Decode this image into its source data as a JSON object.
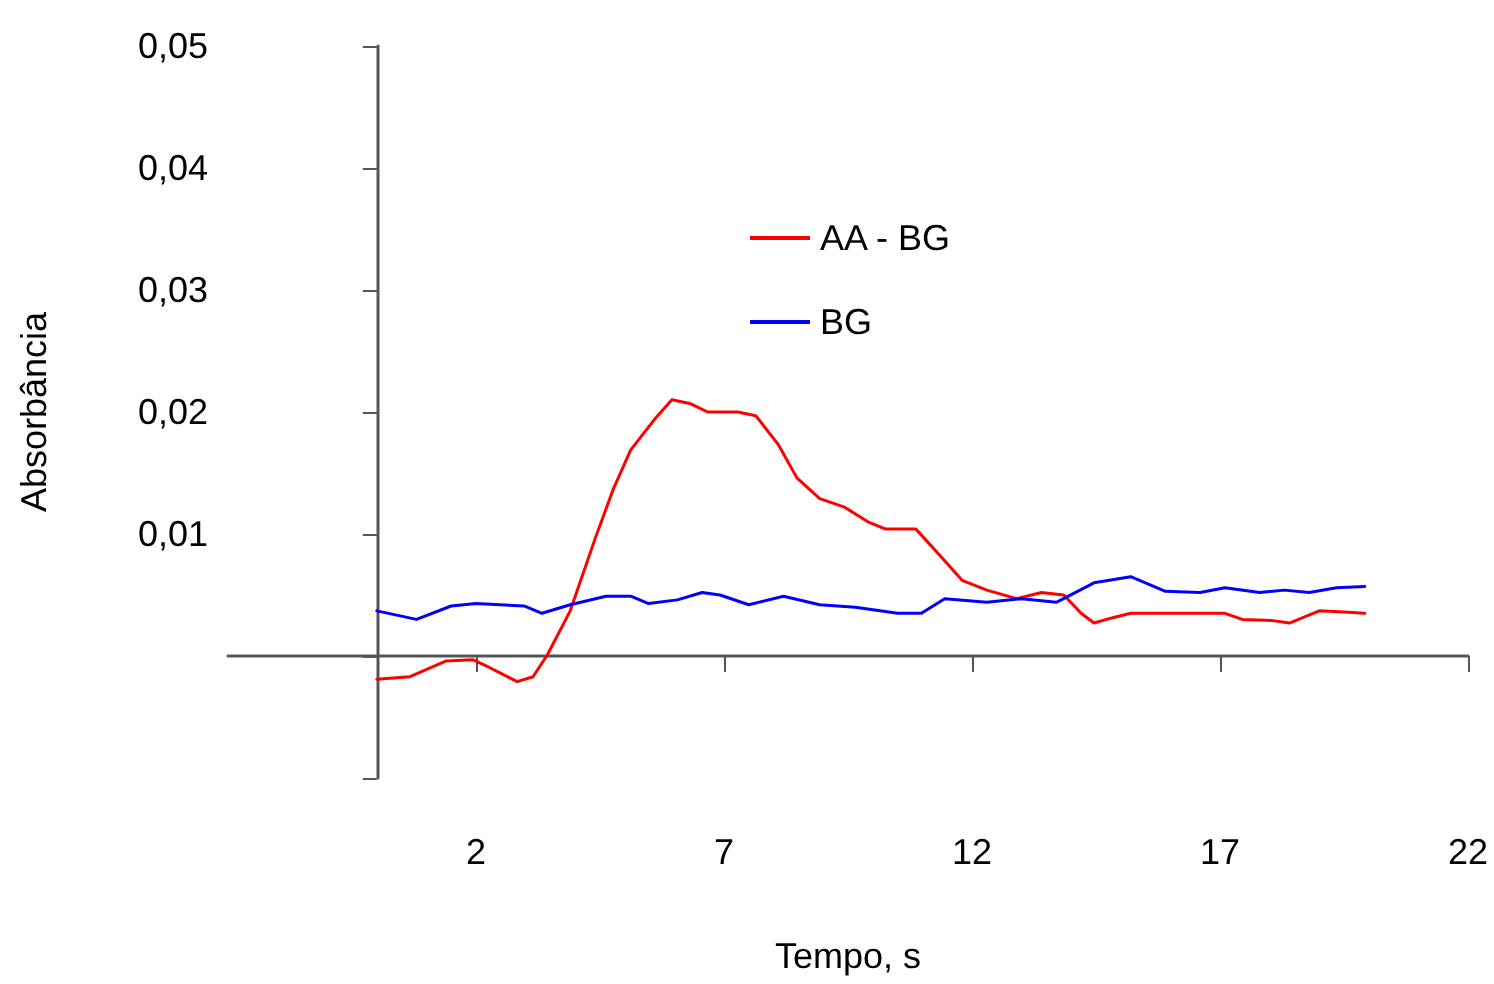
{
  "chart_data": {
    "type": "line",
    "xlabel": "Tempo, s",
    "ylabel": "Absorbância",
    "xlim": [
      -3,
      22
    ],
    "xticks": [
      2,
      7,
      12,
      17,
      22
    ],
    "ylim": [
      -0.01,
      0.05
    ],
    "yticks": [
      {
        "value": -0.01,
        "label": null
      },
      {
        "value": 0,
        "label": null
      },
      {
        "value": 0.01,
        "label": "0,01"
      },
      {
        "value": 0.02,
        "label": "0,02"
      },
      {
        "value": 0.03,
        "label": "0,03"
      },
      {
        "value": 0.04,
        "label": "0,04"
      },
      {
        "value": 0.05,
        "label": "0,05"
      }
    ],
    "legend": "top right",
    "marker": "none",
    "line_style": "solid",
    "series": [
      {
        "name": "AA - BG",
        "color": "#ff0000",
        "x": [
          0,
          0.67,
          1.4,
          1.93,
          2.25,
          2.83,
          3.15,
          3.44,
          3.9,
          4.4,
          4.77,
          5.12,
          5.6,
          5.95,
          6.31,
          6.67,
          7.28,
          7.64,
          8.1,
          8.47,
          8.93,
          9.43,
          9.9,
          10.26,
          10.87,
          11.34,
          11.8,
          12.3,
          12.9,
          13.4,
          13.85,
          14.2,
          14.46,
          14.8,
          15.2,
          17.1,
          17.45,
          18.06,
          18.4,
          19.0,
          19.5,
          19.92
        ],
        "values": [
          -0.0019,
          -0.0017,
          -0.0004,
          -0.0003,
          -0.0009,
          -0.0021,
          -0.0017,
          0.0001,
          0.0037,
          0.0096,
          0.0137,
          0.0169,
          0.0194,
          0.021,
          0.0207,
          0.02,
          0.02,
          0.0197,
          0.0173,
          0.0146,
          0.0129,
          0.0122,
          0.011,
          0.0104,
          0.0104,
          0.0083,
          0.0062,
          0.0054,
          0.0047,
          0.0052,
          0.005,
          0.0035,
          0.0027,
          0.0031,
          0.0035,
          0.0035,
          0.003,
          0.0029,
          0.0027,
          0.0037,
          0.0036,
          0.0035
        ]
      },
      {
        "name": "BG",
        "color": "#0000ff",
        "x": [
          0,
          0.8,
          1.5,
          2.0,
          2.97,
          3.33,
          3.9,
          4.62,
          5.12,
          5.48,
          6.06,
          6.56,
          6.92,
          7.5,
          8.2,
          8.93,
          9.65,
          10.5,
          10.98,
          11.45,
          12.3,
          13.0,
          13.7,
          14.46,
          15.2,
          15.9,
          16.6,
          17.1,
          17.8,
          18.3,
          18.8,
          19.35,
          19.92
        ],
        "values": [
          0.0037,
          0.003,
          0.0041,
          0.0043,
          0.0041,
          0.0035,
          0.0042,
          0.0049,
          0.0049,
          0.0043,
          0.0046,
          0.0052,
          0.005,
          0.0042,
          0.0049,
          0.0042,
          0.004,
          0.0035,
          0.0035,
          0.0047,
          0.0044,
          0.0047,
          0.0044,
          0.006,
          0.0065,
          0.0053,
          0.0052,
          0.0056,
          0.0052,
          0.0054,
          0.0052,
          0.0056,
          0.0057
        ]
      }
    ]
  }
}
